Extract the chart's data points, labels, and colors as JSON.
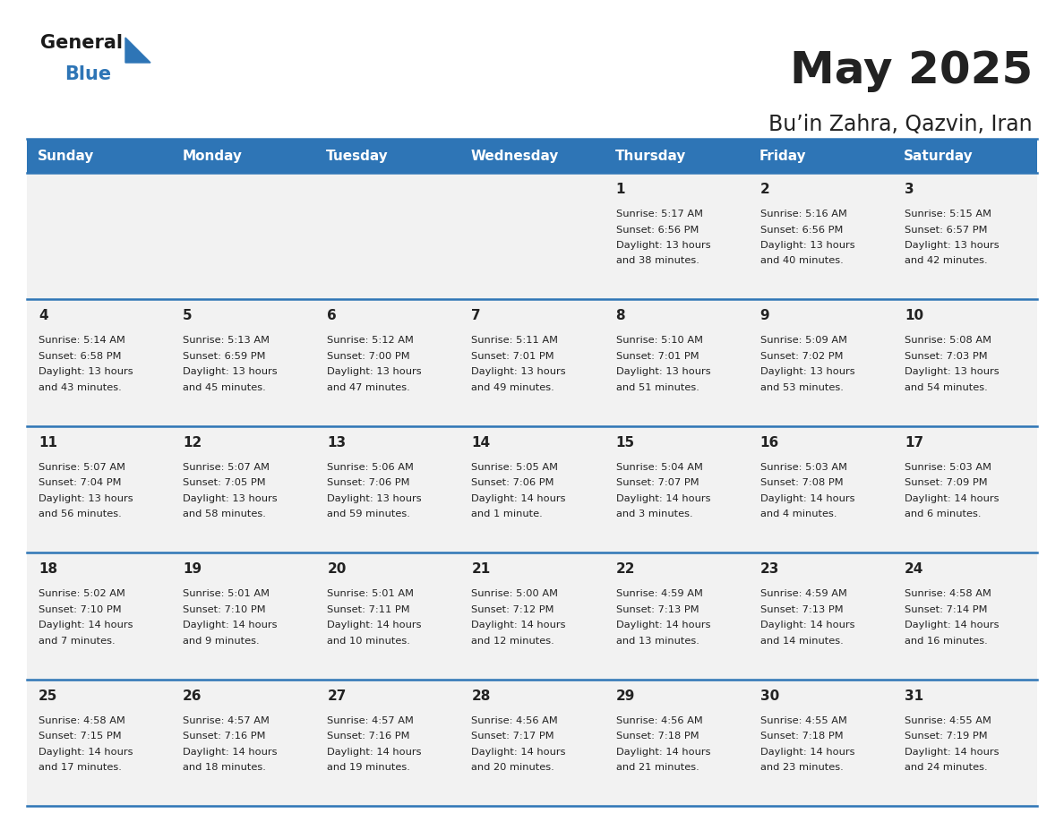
{
  "title": "May 2025",
  "subtitle": "Bu’in Zahra, Qazvin, Iran",
  "header_color": "#2e75b6",
  "header_text_color": "#ffffff",
  "day_names": [
    "Sunday",
    "Monday",
    "Tuesday",
    "Wednesday",
    "Thursday",
    "Friday",
    "Saturday"
  ],
  "days": [
    {
      "day": 1,
      "col": 4,
      "row": 0,
      "sunrise": "5:17 AM",
      "sunset": "6:56 PM",
      "daylight_hours": 13,
      "daylight_minutes": 38
    },
    {
      "day": 2,
      "col": 5,
      "row": 0,
      "sunrise": "5:16 AM",
      "sunset": "6:56 PM",
      "daylight_hours": 13,
      "daylight_minutes": 40
    },
    {
      "day": 3,
      "col": 6,
      "row": 0,
      "sunrise": "5:15 AM",
      "sunset": "6:57 PM",
      "daylight_hours": 13,
      "daylight_minutes": 42
    },
    {
      "day": 4,
      "col": 0,
      "row": 1,
      "sunrise": "5:14 AM",
      "sunset": "6:58 PM",
      "daylight_hours": 13,
      "daylight_minutes": 43
    },
    {
      "day": 5,
      "col": 1,
      "row": 1,
      "sunrise": "5:13 AM",
      "sunset": "6:59 PM",
      "daylight_hours": 13,
      "daylight_minutes": 45
    },
    {
      "day": 6,
      "col": 2,
      "row": 1,
      "sunrise": "5:12 AM",
      "sunset": "7:00 PM",
      "daylight_hours": 13,
      "daylight_minutes": 47
    },
    {
      "day": 7,
      "col": 3,
      "row": 1,
      "sunrise": "5:11 AM",
      "sunset": "7:01 PM",
      "daylight_hours": 13,
      "daylight_minutes": 49
    },
    {
      "day": 8,
      "col": 4,
      "row": 1,
      "sunrise": "5:10 AM",
      "sunset": "7:01 PM",
      "daylight_hours": 13,
      "daylight_minutes": 51
    },
    {
      "day": 9,
      "col": 5,
      "row": 1,
      "sunrise": "5:09 AM",
      "sunset": "7:02 PM",
      "daylight_hours": 13,
      "daylight_minutes": 53
    },
    {
      "day": 10,
      "col": 6,
      "row": 1,
      "sunrise": "5:08 AM",
      "sunset": "7:03 PM",
      "daylight_hours": 13,
      "daylight_minutes": 54
    },
    {
      "day": 11,
      "col": 0,
      "row": 2,
      "sunrise": "5:07 AM",
      "sunset": "7:04 PM",
      "daylight_hours": 13,
      "daylight_minutes": 56
    },
    {
      "day": 12,
      "col": 1,
      "row": 2,
      "sunrise": "5:07 AM",
      "sunset": "7:05 PM",
      "daylight_hours": 13,
      "daylight_minutes": 58
    },
    {
      "day": 13,
      "col": 2,
      "row": 2,
      "sunrise": "5:06 AM",
      "sunset": "7:06 PM",
      "daylight_hours": 13,
      "daylight_minutes": 59
    },
    {
      "day": 14,
      "col": 3,
      "row": 2,
      "sunrise": "5:05 AM",
      "sunset": "7:06 PM",
      "daylight_hours": 14,
      "daylight_minutes": 1
    },
    {
      "day": 15,
      "col": 4,
      "row": 2,
      "sunrise": "5:04 AM",
      "sunset": "7:07 PM",
      "daylight_hours": 14,
      "daylight_minutes": 3
    },
    {
      "day": 16,
      "col": 5,
      "row": 2,
      "sunrise": "5:03 AM",
      "sunset": "7:08 PM",
      "daylight_hours": 14,
      "daylight_minutes": 4
    },
    {
      "day": 17,
      "col": 6,
      "row": 2,
      "sunrise": "5:03 AM",
      "sunset": "7:09 PM",
      "daylight_hours": 14,
      "daylight_minutes": 6
    },
    {
      "day": 18,
      "col": 0,
      "row": 3,
      "sunrise": "5:02 AM",
      "sunset": "7:10 PM",
      "daylight_hours": 14,
      "daylight_minutes": 7
    },
    {
      "day": 19,
      "col": 1,
      "row": 3,
      "sunrise": "5:01 AM",
      "sunset": "7:10 PM",
      "daylight_hours": 14,
      "daylight_minutes": 9
    },
    {
      "day": 20,
      "col": 2,
      "row": 3,
      "sunrise": "5:01 AM",
      "sunset": "7:11 PM",
      "daylight_hours": 14,
      "daylight_minutes": 10
    },
    {
      "day": 21,
      "col": 3,
      "row": 3,
      "sunrise": "5:00 AM",
      "sunset": "7:12 PM",
      "daylight_hours": 14,
      "daylight_minutes": 12
    },
    {
      "day": 22,
      "col": 4,
      "row": 3,
      "sunrise": "4:59 AM",
      "sunset": "7:13 PM",
      "daylight_hours": 14,
      "daylight_minutes": 13
    },
    {
      "day": 23,
      "col": 5,
      "row": 3,
      "sunrise": "4:59 AM",
      "sunset": "7:13 PM",
      "daylight_hours": 14,
      "daylight_minutes": 14
    },
    {
      "day": 24,
      "col": 6,
      "row": 3,
      "sunrise": "4:58 AM",
      "sunset": "7:14 PM",
      "daylight_hours": 14,
      "daylight_minutes": 16
    },
    {
      "day": 25,
      "col": 0,
      "row": 4,
      "sunrise": "4:58 AM",
      "sunset": "7:15 PM",
      "daylight_hours": 14,
      "daylight_minutes": 17
    },
    {
      "day": 26,
      "col": 1,
      "row": 4,
      "sunrise": "4:57 AM",
      "sunset": "7:16 PM",
      "daylight_hours": 14,
      "daylight_minutes": 18
    },
    {
      "day": 27,
      "col": 2,
      "row": 4,
      "sunrise": "4:57 AM",
      "sunset": "7:16 PM",
      "daylight_hours": 14,
      "daylight_minutes": 19
    },
    {
      "day": 28,
      "col": 3,
      "row": 4,
      "sunrise": "4:56 AM",
      "sunset": "7:17 PM",
      "daylight_hours": 14,
      "daylight_minutes": 20
    },
    {
      "day": 29,
      "col": 4,
      "row": 4,
      "sunrise": "4:56 AM",
      "sunset": "7:18 PM",
      "daylight_hours": 14,
      "daylight_minutes": 21
    },
    {
      "day": 30,
      "col": 5,
      "row": 4,
      "sunrise": "4:55 AM",
      "sunset": "7:18 PM",
      "daylight_hours": 14,
      "daylight_minutes": 23
    },
    {
      "day": 31,
      "col": 6,
      "row": 4,
      "sunrise": "4:55 AM",
      "sunset": "7:19 PM",
      "daylight_hours": 14,
      "daylight_minutes": 24
    }
  ],
  "num_rows": 5,
  "cell_bg": "#f2f2f2",
  "text_color": "#222222",
  "line_color": "#2e75b6",
  "logo_general_color": "#1a1a1a",
  "logo_blue_color": "#2e75b6"
}
